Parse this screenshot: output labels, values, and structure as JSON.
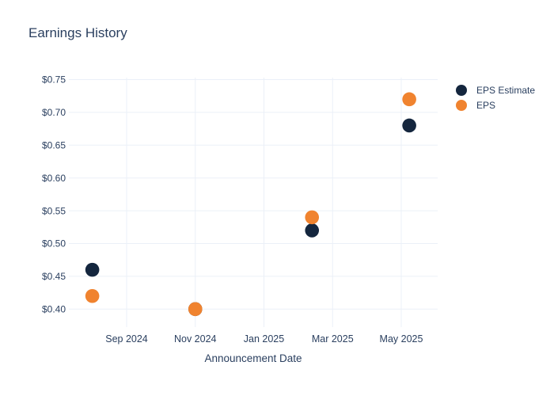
{
  "colors": {
    "background": "#ffffff",
    "text": "#2a3f5f",
    "grid": "#ebf0f8",
    "eps_estimate": "#14263e",
    "eps": "#f0832f"
  },
  "chart_data": {
    "type": "scatter",
    "title": "Earnings History",
    "xlabel": "Announcement Date",
    "ylabel": "",
    "grid": true,
    "legend_position": "outside-top-right",
    "marker_diameter_px": 17,
    "x_tick_labels": [
      "Sep 2024",
      "Nov 2024",
      "Jan 2025",
      "Mar 2025",
      "May 2025"
    ],
    "y_ticks": [
      0.75,
      0.7,
      0.65,
      0.6,
      0.55,
      0.5,
      0.45,
      0.4
    ],
    "y_tick_labels": [
      "$0.75",
      "$0.70",
      "$0.65",
      "$0.60",
      "$0.55",
      "$0.50",
      "$0.45",
      "$0.40"
    ],
    "ylim": [
      0.385,
      0.755
    ],
    "x": [
      "2024-08-01",
      "2024-11-01",
      "2025-02-13",
      "2025-05-08"
    ],
    "series": [
      {
        "name": "EPS Estimate",
        "color": "#14263e",
        "values": [
          0.46,
          0.4,
          0.52,
          0.68
        ]
      },
      {
        "name": "EPS",
        "color": "#f0832f",
        "values": [
          0.42,
          0.4,
          0.54,
          0.72
        ]
      }
    ]
  }
}
